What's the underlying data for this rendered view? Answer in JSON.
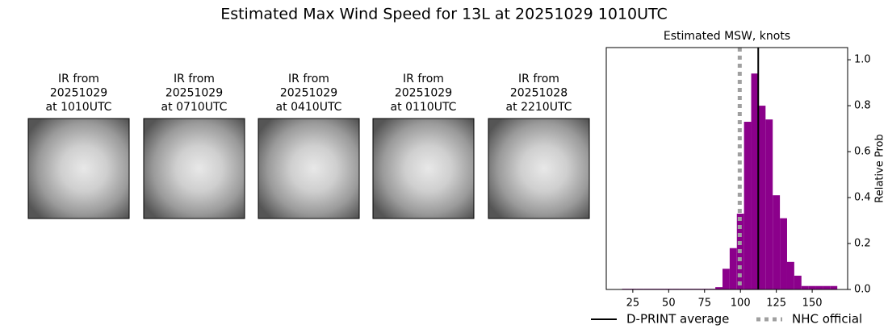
{
  "title": "Estimated Max Wind Speed for 13L at 20251029 1010UTC",
  "images": [
    {
      "caption": [
        "IR from",
        "20251029",
        "at 1010UTC"
      ]
    },
    {
      "caption": [
        "IR from",
        "20251029",
        "at 0710UTC"
      ]
    },
    {
      "caption": [
        "IR from",
        "20251029",
        "at 0410UTC"
      ]
    },
    {
      "caption": [
        "IR from",
        "20251029",
        "at 0110UTC"
      ]
    },
    {
      "caption": [
        "IR from",
        "20251028",
        "at 2210UTC"
      ]
    }
  ],
  "chart_data": {
    "type": "histogram",
    "title": "Estimated MSW, knots",
    "ylabel": "Relative Prob",
    "color": "#8b008b",
    "bins": [
      17.5,
      22.5,
      27.5,
      32.5,
      37.5,
      42.5,
      47.5,
      52.5,
      57.5,
      62.5,
      67.5,
      72.5,
      77.5,
      82.5,
      87.5,
      92.5,
      97.5,
      102.5,
      107.5,
      112.5,
      117.5,
      122.5,
      127.5,
      132.5,
      137.5,
      142.5,
      147.5,
      152.5,
      157.5,
      162.5,
      167.5
    ],
    "values": [
      0.003,
      0.003,
      0.003,
      0.003,
      0.003,
      0.003,
      0.003,
      0.003,
      0.003,
      0.003,
      0.003,
      0.003,
      0.003,
      0.01,
      0.09,
      0.18,
      0.33,
      0.73,
      0.94,
      0.8,
      0.74,
      0.41,
      0.31,
      0.12,
      0.06,
      0.015,
      0.015,
      0.015,
      0.015,
      0.015
    ],
    "xlim": [
      6.5,
      174.7
    ],
    "ylim": [
      0,
      1.053
    ],
    "xticks": [
      25,
      50,
      75,
      100,
      125,
      150
    ],
    "yticks": [
      {
        "value": 0,
        "label": "0.0"
      },
      0.2,
      0.4,
      0.6,
      0.8,
      {
        "value": 1,
        "label": "1.0"
      }
    ],
    "vlines": [
      {
        "name": "D-PRINT average",
        "x": 112.4,
        "color": "#000000",
        "style": "solid"
      },
      {
        "name": "NHC official",
        "x": 99.5,
        "color": "#a0a0a0",
        "style": "dotted"
      }
    ]
  }
}
